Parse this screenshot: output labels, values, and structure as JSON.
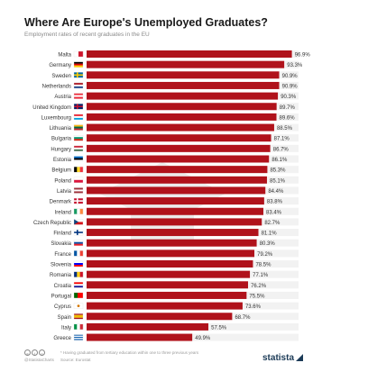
{
  "header": {
    "title": "Where Are Europe's Unemployed Graduates?",
    "subtitle": "Employment rates of recent graduates in the EU"
  },
  "footer": {
    "note": "* Having graduated from tertiary education within one to three previous years",
    "credit": "@StatistaCharts",
    "source": "Source: Eurostat",
    "brand": "statista"
  },
  "colors": {
    "bar": "#b0121b",
    "bar_track": "#f2f2f2",
    "brand": "#1b3a57"
  },
  "chart_data": {
    "type": "bar",
    "orientation": "horizontal",
    "title": "Where Are Europe's Unemployed Graduates?",
    "subtitle": "Employment rates of recent graduates in the EU",
    "xlabel": "",
    "ylabel": "",
    "xlim": [
      0,
      100
    ],
    "unit": "%",
    "categories": [
      "Malta",
      "Germany",
      "Sweden",
      "Netherlands",
      "Austria",
      "United Kingdom",
      "Luxembourg",
      "Lithuania",
      "Bulgaria",
      "Hungary",
      "Estonia",
      "Belgium",
      "Poland",
      "Latvia",
      "Denmark",
      "Ireland",
      "Czech Republic",
      "Finland",
      "Slovakia",
      "France",
      "Slovenia",
      "Romania",
      "Croatia",
      "Portugal",
      "Cyprus",
      "Spain",
      "Italy",
      "Greece"
    ],
    "values": [
      96.9,
      93.3,
      90.9,
      90.9,
      90.3,
      89.7,
      89.6,
      88.5,
      87.1,
      86.7,
      86.1,
      85.3,
      85.1,
      84.4,
      83.8,
      83.4,
      82.7,
      81.1,
      80.3,
      79.2,
      78.5,
      77.1,
      76.2,
      75.5,
      73.6,
      68.7,
      57.5,
      49.9
    ],
    "value_labels": [
      "96.9%",
      "93.3%",
      "90.9%",
      "90.9%",
      "90.3%",
      "89.7%",
      "89.6%",
      "88.5%",
      "87.1%",
      "86.7%",
      "86.1%",
      "85.3%",
      "85.1%",
      "84.4%",
      "83.8%",
      "83.4%",
      "82.7%",
      "81.1%",
      "80.3%",
      "79.2%",
      "78.5%",
      "77.1%",
      "76.2%",
      "75.5%",
      "73.6%",
      "68.7%",
      "57.5%",
      "49.9%"
    ],
    "flag_icons": [
      "malta-flag-icon",
      "germany-flag-icon",
      "sweden-flag-icon",
      "netherlands-flag-icon",
      "austria-flag-icon",
      "united-kingdom-flag-icon",
      "luxembourg-flag-icon",
      "lithuania-flag-icon",
      "bulgaria-flag-icon",
      "hungary-flag-icon",
      "estonia-flag-icon",
      "belgium-flag-icon",
      "poland-flag-icon",
      "latvia-flag-icon",
      "denmark-flag-icon",
      "ireland-flag-icon",
      "czech-republic-flag-icon",
      "finland-flag-icon",
      "slovakia-flag-icon",
      "france-flag-icon",
      "slovenia-flag-icon",
      "romania-flag-icon",
      "croatia-flag-icon",
      "portugal-flag-icon",
      "cyprus-flag-icon",
      "spain-flag-icon",
      "italy-flag-icon",
      "greece-flag-icon"
    ],
    "grid": false,
    "legend": "none"
  }
}
